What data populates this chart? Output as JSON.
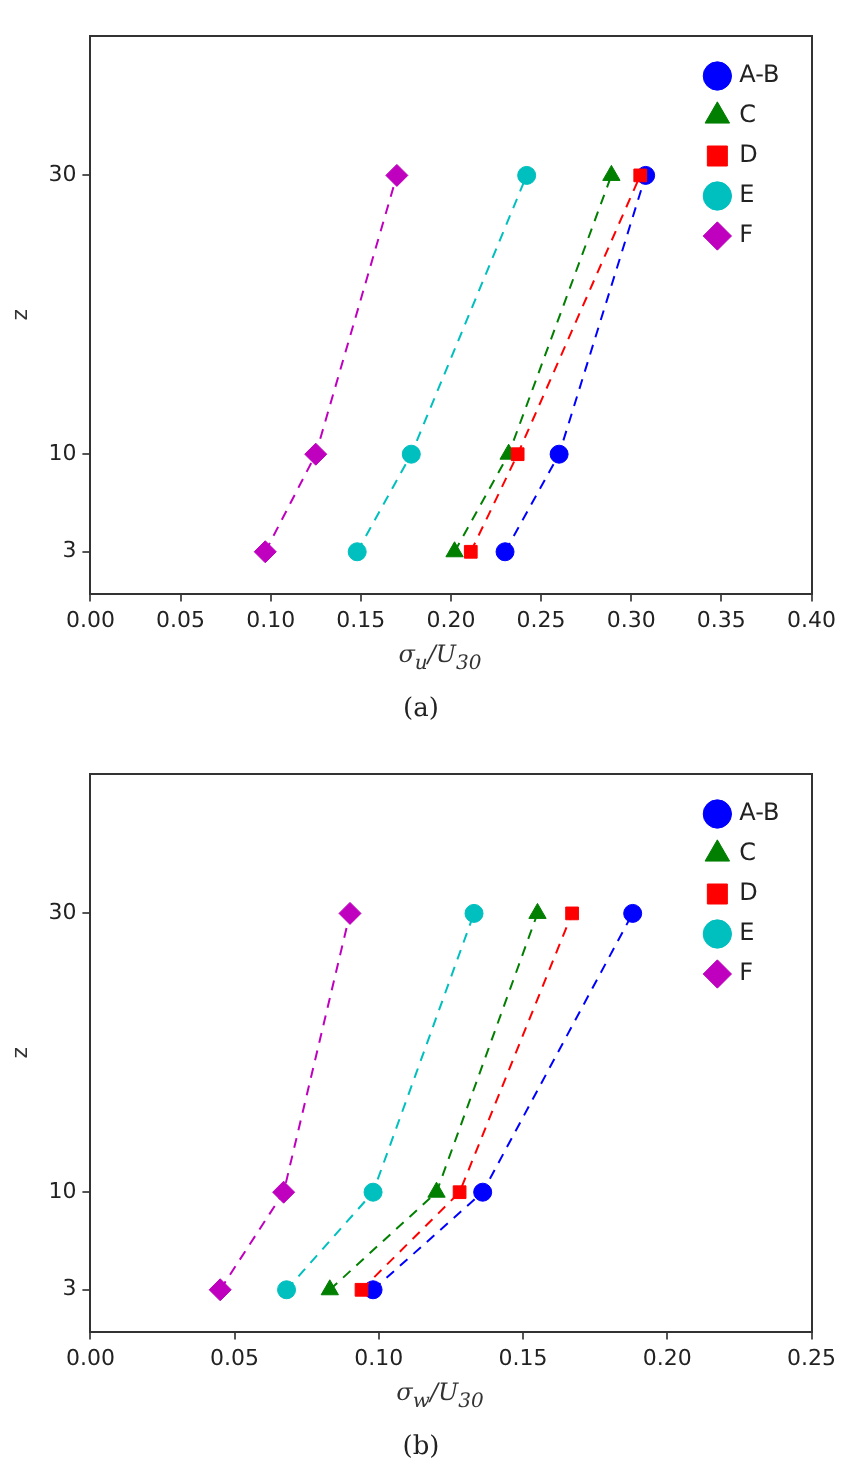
{
  "chart_data": [
    {
      "type": "line",
      "xlabel": "σ$_{u}$/U$_{30}$",
      "ylabel": "z",
      "annotations": [
        "(a)"
      ],
      "xlim": [
        0,
        0.4
      ],
      "xticks": [
        {
          "value": 0,
          "label": "0.00"
        },
        {
          "value": 0.05,
          "label": "0.05"
        },
        {
          "value": 0.1,
          "label": "0.10"
        },
        {
          "value": 0.15,
          "label": "0.15"
        },
        {
          "value": 0.2,
          "label": "0.20"
        },
        {
          "value": 0.25,
          "label": "0.25"
        },
        {
          "value": 0.3,
          "label": "0.30"
        },
        {
          "value": 0.35,
          "label": "0.35"
        },
        {
          "value": 0.4,
          "label": "0.40"
        }
      ],
      "ylim": [
        0,
        40
      ],
      "yticks": [
        3,
        10,
        30
      ],
      "grid": false,
      "legend": "top right",
      "line_style": "dashed",
      "series": [
        {
          "name": "A-B",
          "color": "#0000ff",
          "marker": "circle",
          "x": [
            0.23,
            0.26,
            0.308
          ],
          "values": [
            3,
            10,
            30
          ]
        },
        {
          "name": "C",
          "color": "#007f00",
          "marker": "triangle",
          "x": [
            0.202,
            0.232,
            0.289
          ],
          "values": [
            3,
            10,
            30
          ]
        },
        {
          "name": "D",
          "color": "#ff0000",
          "marker": "square",
          "x": [
            0.211,
            0.237,
            0.305
          ],
          "values": [
            3,
            10,
            30
          ]
        },
        {
          "name": "E",
          "color": "#00bfbf",
          "marker": "circle",
          "x": [
            0.148,
            0.178,
            0.242
          ],
          "values": [
            3,
            10,
            30
          ]
        },
        {
          "name": "F",
          "color": "#bf00bf",
          "marker": "diamond",
          "x": [
            0.097,
            0.125,
            0.17
          ],
          "values": [
            3,
            10,
            30
          ]
        }
      ]
    },
    {
      "type": "line",
      "xlabel": "σ$_{w}$/U$_{30}$",
      "ylabel": "z",
      "annotations": [
        "(b)"
      ],
      "xlim": [
        0,
        0.25
      ],
      "xticks": [
        {
          "value": 0,
          "label": "0.00"
        },
        {
          "value": 0.05,
          "label": "0.05"
        },
        {
          "value": 0.1,
          "label": "0.10"
        },
        {
          "value": 0.15,
          "label": "0.15"
        },
        {
          "value": 0.2,
          "label": "0.20"
        },
        {
          "value": 0.25,
          "label": "0.25"
        }
      ],
      "ylim": [
        0,
        40
      ],
      "yticks": [
        3,
        10,
        30
      ],
      "grid": false,
      "legend": "top right",
      "line_style": "dashed",
      "series": [
        {
          "name": "A-B",
          "color": "#0000ff",
          "marker": "circle",
          "x": [
            0.098,
            0.136,
            0.188
          ],
          "values": [
            3,
            10,
            30
          ]
        },
        {
          "name": "C",
          "color": "#007f00",
          "marker": "triangle",
          "x": [
            0.083,
            0.12,
            0.155
          ],
          "values": [
            3,
            10,
            30
          ]
        },
        {
          "name": "D",
          "color": "#ff0000",
          "marker": "square",
          "x": [
            0.094,
            0.128,
            0.167
          ],
          "values": [
            3,
            10,
            30
          ]
        },
        {
          "name": "E",
          "color": "#00bfbf",
          "marker": "circle",
          "x": [
            0.068,
            0.098,
            0.133
          ],
          "values": [
            3,
            10,
            30
          ]
        },
        {
          "name": "F",
          "color": "#bf00bf",
          "marker": "diamond",
          "x": [
            0.045,
            0.067,
            0.09
          ],
          "values": [
            3,
            10,
            30
          ]
        }
      ]
    }
  ]
}
